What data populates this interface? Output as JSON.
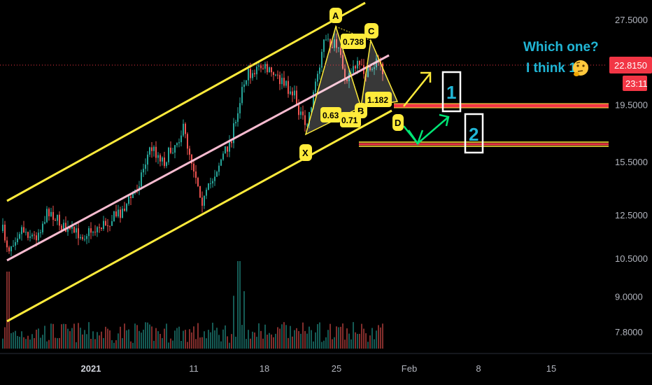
{
  "chart_data": {
    "type": "candlestick",
    "price_scale": {
      "ticks": [
        "27.5000",
        "19.5000",
        "15.5000",
        "12.5000",
        "10.5000",
        "9.0000",
        "7.8000"
      ],
      "tick_values": [
        27.5,
        19.5,
        15.5,
        12.5,
        10.5,
        9.0,
        7.8
      ],
      "scale": "log"
    },
    "time_scale": {
      "labels": [
        "2021",
        "11",
        "18",
        "25",
        "Feb",
        "8",
        "15"
      ],
      "bold": [
        "2021"
      ]
    },
    "current_price": {
      "value": "22.8150",
      "countdown": "23:11",
      "color": "#f23645"
    },
    "harmonic_points": {
      "X": "X",
      "A": "A",
      "B": "B",
      "C": "C",
      "D": "D"
    },
    "ratios": [
      "0.738",
      "0.63",
      "0.71",
      "1.182"
    ],
    "zones": [
      {
        "label": "1",
        "price": 19.6,
        "color": "#f23645"
      },
      {
        "label": "2",
        "price": 16.5,
        "color": "#ffeb3b"
      }
    ],
    "annotation": {
      "line1": "Which one?",
      "line2": "I think 1",
      "emoji": "thinking-face"
    },
    "colors": {
      "up": "#26a69a",
      "down": "#ef5350",
      "channel": "#ffeb3b",
      "midline": "#f8bbd0",
      "arrow_green": "#00e676",
      "arrow_yellow": "#ffeb3b",
      "text_cyan": "#21b6d6"
    }
  }
}
